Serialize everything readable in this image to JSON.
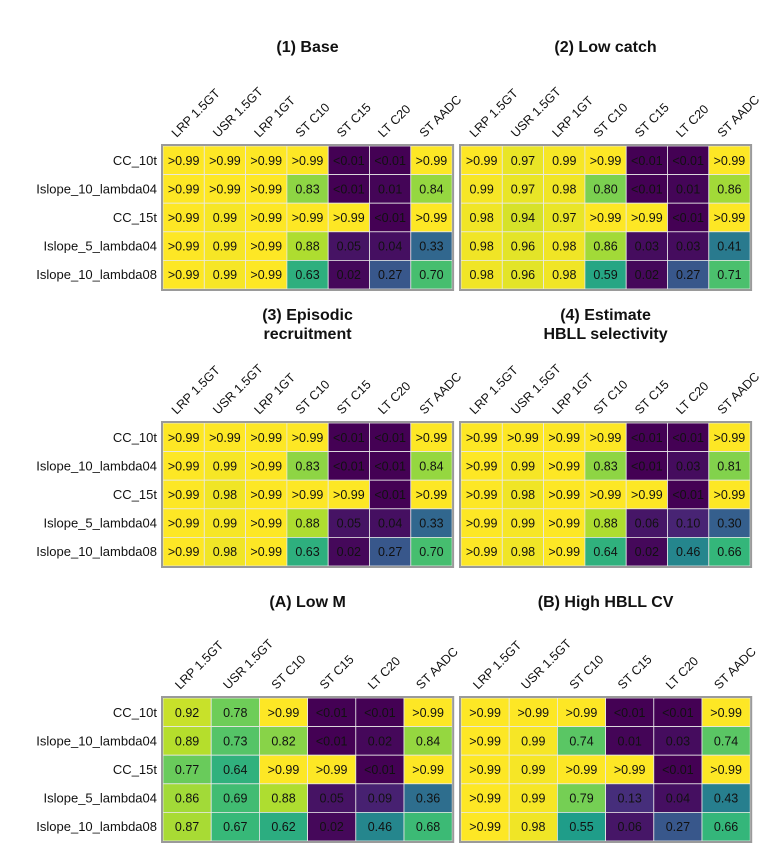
{
  "chart_data": [
    {
      "type": "heatmap",
      "title_lines": [
        "(1) Base"
      ],
      "columns": [
        "LRP 1.5GT",
        "USR 1.5GT",
        "LRP 1GT",
        "ST C10",
        "ST C15",
        "LT C20",
        "ST AADC"
      ],
      "rows": [
        "CC_10t",
        "Islope_10_lambda04",
        "CC_15t",
        "Islope_5_lambda04",
        "Islope_10_lambda08"
      ],
      "values": [
        [
          ">0.99",
          ">0.99",
          ">0.99",
          ">0.99",
          "<0.01",
          "<0.01",
          ">0.99"
        ],
        [
          ">0.99",
          ">0.99",
          ">0.99",
          "0.83",
          "<0.01",
          "0.01",
          "0.84"
        ],
        [
          ">0.99",
          "0.99",
          ">0.99",
          ">0.99",
          ">0.99",
          "<0.01",
          ">0.99"
        ],
        [
          ">0.99",
          "0.99",
          ">0.99",
          "0.88",
          "0.05",
          "0.04",
          "0.33"
        ],
        [
          ">0.99",
          "0.99",
          ">0.99",
          "0.63",
          "0.02",
          "0.27",
          "0.70"
        ]
      ]
    },
    {
      "type": "heatmap",
      "title_lines": [
        "(2) Low catch"
      ],
      "columns": [
        "LRP 1.5GT",
        "USR 1.5GT",
        "LRP 1GT",
        "ST C10",
        "ST C15",
        "LT C20",
        "ST AADC"
      ],
      "rows": [
        "CC_10t",
        "Islope_10_lambda04",
        "CC_15t",
        "Islope_5_lambda04",
        "Islope_10_lambda08"
      ],
      "values": [
        [
          ">0.99",
          "0.97",
          "0.99",
          ">0.99",
          "<0.01",
          "<0.01",
          ">0.99"
        ],
        [
          "0.99",
          "0.97",
          "0.98",
          "0.80",
          "<0.01",
          "0.01",
          "0.86"
        ],
        [
          "0.98",
          "0.94",
          "0.97",
          ">0.99",
          ">0.99",
          "<0.01",
          ">0.99"
        ],
        [
          "0.98",
          "0.96",
          "0.98",
          "0.86",
          "0.03",
          "0.03",
          "0.41"
        ],
        [
          "0.98",
          "0.96",
          "0.98",
          "0.59",
          "0.02",
          "0.27",
          "0.71"
        ]
      ]
    },
    {
      "type": "heatmap",
      "title_lines": [
        "(3) Episodic",
        "recruitment"
      ],
      "columns": [
        "LRP 1.5GT",
        "USR 1.5GT",
        "LRP 1GT",
        "ST C10",
        "ST C15",
        "LT C20",
        "ST AADC"
      ],
      "rows": [
        "CC_10t",
        "Islope_10_lambda04",
        "CC_15t",
        "Islope_5_lambda04",
        "Islope_10_lambda08"
      ],
      "values": [
        [
          ">0.99",
          ">0.99",
          ">0.99",
          ">0.99",
          "<0.01",
          "<0.01",
          ">0.99"
        ],
        [
          ">0.99",
          "0.99",
          ">0.99",
          "0.83",
          "<0.01",
          "<0.01",
          "0.84"
        ],
        [
          ">0.99",
          "0.98",
          ">0.99",
          ">0.99",
          ">0.99",
          "<0.01",
          ">0.99"
        ],
        [
          ">0.99",
          "0.99",
          ">0.99",
          "0.88",
          "0.05",
          "0.04",
          "0.33"
        ],
        [
          ">0.99",
          "0.98",
          ">0.99",
          "0.63",
          "0.02",
          "0.27",
          "0.70"
        ]
      ]
    },
    {
      "type": "heatmap",
      "title_lines": [
        "(4) Estimate",
        "HBLL selectivity"
      ],
      "columns": [
        "LRP 1.5GT",
        "USR 1.5GT",
        "LRP 1GT",
        "ST C10",
        "ST C15",
        "LT C20",
        "ST AADC"
      ],
      "rows": [
        "CC_10t",
        "Islope_10_lambda04",
        "CC_15t",
        "Islope_5_lambda04",
        "Islope_10_lambda08"
      ],
      "values": [
        [
          ">0.99",
          ">0.99",
          ">0.99",
          ">0.99",
          "<0.01",
          "<0.01",
          ">0.99"
        ],
        [
          ">0.99",
          "0.99",
          ">0.99",
          "0.83",
          "<0.01",
          "0.03",
          "0.81"
        ],
        [
          ">0.99",
          "0.98",
          ">0.99",
          ">0.99",
          ">0.99",
          "<0.01",
          ">0.99"
        ],
        [
          ">0.99",
          "0.99",
          ">0.99",
          "0.88",
          "0.06",
          "0.10",
          "0.30"
        ],
        [
          ">0.99",
          "0.98",
          ">0.99",
          "0.64",
          "0.02",
          "0.46",
          "0.66"
        ]
      ]
    },
    {
      "type": "heatmap",
      "title_lines": [
        "(A) Low M"
      ],
      "columns": [
        "LRP 1.5GT",
        "USR 1.5GT",
        "ST C10",
        "ST C15",
        "LT C20",
        "ST AADC"
      ],
      "rows": [
        "CC_10t",
        "Islope_10_lambda04",
        "CC_15t",
        "Islope_5_lambda04",
        "Islope_10_lambda08"
      ],
      "values": [
        [
          "0.92",
          "0.78",
          ">0.99",
          "<0.01",
          "<0.01",
          ">0.99"
        ],
        [
          "0.89",
          "0.73",
          "0.82",
          "<0.01",
          "0.02",
          "0.84"
        ],
        [
          "0.77",
          "0.64",
          ">0.99",
          ">0.99",
          "<0.01",
          ">0.99"
        ],
        [
          "0.86",
          "0.69",
          "0.88",
          "0.05",
          "0.09",
          "0.36"
        ],
        [
          "0.87",
          "0.67",
          "0.62",
          "0.02",
          "0.46",
          "0.68"
        ]
      ]
    },
    {
      "type": "heatmap",
      "title_lines": [
        "(B) High HBLL CV"
      ],
      "columns": [
        "LRP 1.5GT",
        "USR 1.5GT",
        "ST C10",
        "ST C15",
        "LT C20",
        "ST AADC"
      ],
      "rows": [
        "CC_10t",
        "Islope_10_lambda04",
        "CC_15t",
        "Islope_5_lambda04",
        "Islope_10_lambda08"
      ],
      "values": [
        [
          ">0.99",
          ">0.99",
          ">0.99",
          "<0.01",
          "<0.01",
          ">0.99"
        ],
        [
          ">0.99",
          "0.99",
          "0.74",
          "0.01",
          "0.03",
          "0.74"
        ],
        [
          ">0.99",
          "0.99",
          ">0.99",
          ">0.99",
          "<0.01",
          ">0.99"
        ],
        [
          ">0.99",
          "0.99",
          "0.79",
          "0.13",
          "0.04",
          "0.43"
        ],
        [
          ">0.99",
          "0.98",
          "0.55",
          "0.06",
          "0.27",
          "0.66"
        ]
      ]
    }
  ]
}
